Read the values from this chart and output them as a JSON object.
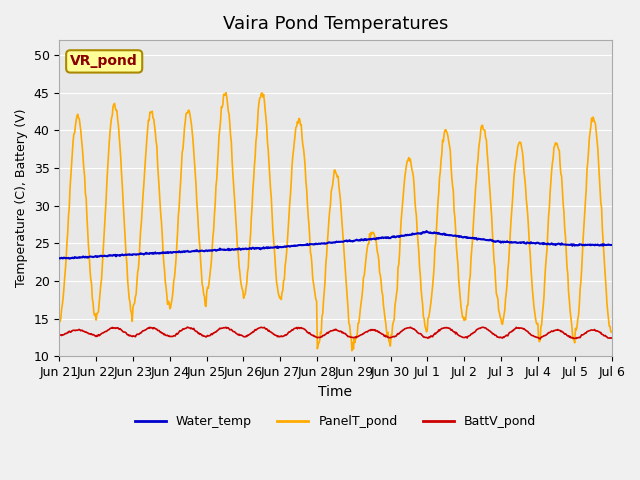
{
  "title": "Vaira Pond Temperatures",
  "xlabel": "Time",
  "ylabel": "Temperature (C), Battery (V)",
  "ylim": [
    10,
    52
  ],
  "yticks": [
    10,
    15,
    20,
    25,
    30,
    35,
    40,
    45,
    50
  ],
  "background_color": "#f0f0f0",
  "plot_bg_color": "#e8e8e8",
  "water_temp_color": "#0000cc",
  "panel_temp_color": "#ffaa00",
  "batt_color": "#cc0000",
  "legend_label_water": "Water_temp",
  "legend_label_panel": "PanelT_pond",
  "legend_label_batt": "BattV_pond",
  "site_label": "VR_pond",
  "site_label_color": "#8b0000",
  "site_label_bg": "#ffff99",
  "tick_labels": [
    "Jun 21",
    "Jun 22",
    "Jun 23",
    "Jun 24",
    "Jun 25",
    "Jun 26",
    "Jun 27",
    "Jun 28",
    "Jun 29",
    "Jun 30",
    "Jul 1",
    "Jul 2",
    "Jul 3",
    "Jul 4",
    "Jul 5",
    "Jul 6"
  ],
  "tick_positions": [
    0,
    1,
    2,
    3,
    4,
    5,
    6,
    7,
    8,
    9,
    10,
    11,
    12,
    13,
    14,
    15
  ],
  "n_days": 15,
  "panel_day_peaks": [
    42,
    43.5,
    42.5,
    42.5,
    45,
    45,
    41.5,
    34.5,
    26.5,
    36.5,
    40,
    40.5,
    38.5,
    38.5,
    41.5
  ],
  "panel_night_lows": [
    15,
    15,
    16.5,
    16.5,
    18.5,
    17.5,
    17.5,
    11,
    12,
    13,
    15,
    15,
    14,
    12,
    13
  ],
  "batt_day_peaks": [
    13.5,
    13.8,
    13.8,
    13.8,
    13.8,
    13.8,
    13.8,
    13.5,
    13.5,
    13.8,
    13.8,
    13.8,
    13.8,
    13.5,
    13.5
  ],
  "batt_night_lows": [
    12.8,
    12.7,
    12.7,
    12.6,
    12.7,
    12.6,
    12.6,
    12.5,
    12.5,
    12.5,
    12.5,
    12.5,
    12.5,
    12.4,
    12.4
  ],
  "water_interp_x": [
    0,
    3,
    6,
    9,
    10,
    12,
    14,
    15
  ],
  "water_interp_y": [
    23.0,
    23.8,
    24.5,
    25.8,
    26.5,
    25.2,
    24.8,
    24.8
  ]
}
